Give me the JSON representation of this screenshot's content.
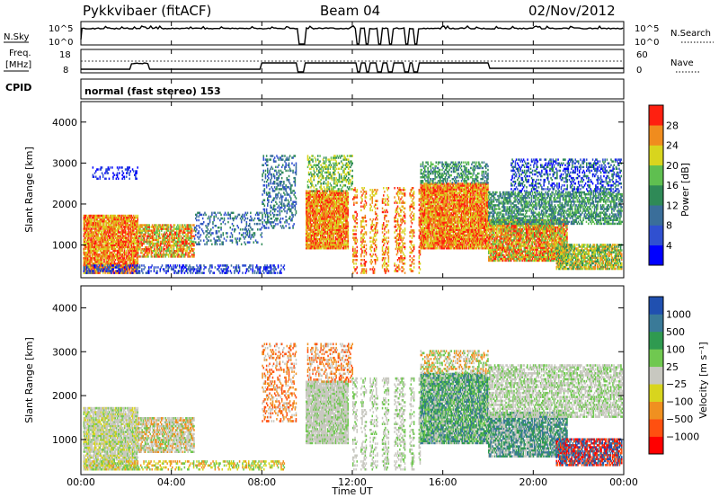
{
  "header": {
    "station": "Pykkvibaer (fitACF)",
    "beam": "Beam 04",
    "date": "02/Nov/2012"
  },
  "strips": {
    "nsky_label": "N.Sky",
    "nsearch_label": "N.Search",
    "freq_label_1": "Freq.",
    "freq_label_2": "[MHz]",
    "nave_label": "Nave",
    "cpid_label": "CPID",
    "cpid_text": "normal (fast stereo) 153",
    "noise_left_ticks": [
      "10^5",
      "10^0"
    ],
    "noise_right_ticks": [
      "10^5",
      "10^0"
    ],
    "freq_left_ticks": [
      "18",
      "8"
    ],
    "nave_right_ticks": [
      "60",
      "0"
    ],
    "line_color": "#000000"
  },
  "chart_data": [
    {
      "type": "heatmap",
      "name": "power",
      "ylabel": "Slant Range [km]",
      "xlabel": "Time UT",
      "x_ticks": [
        "00:00",
        "04:00",
        "08:00",
        "12:00",
        "16:00",
        "20:00",
        "00:00"
      ],
      "xlim_hours": [
        0,
        24
      ],
      "ylim_km": [
        200,
        4500
      ],
      "y_ticks": [
        "1000",
        "2000",
        "3000",
        "4000"
      ],
      "colorbar": {
        "label": "Power [dB]",
        "ticks": [
          "4",
          "8",
          "12",
          "16",
          "20",
          "24",
          "28"
        ],
        "colors": [
          "#0000ff",
          "#3050d0",
          "#3a6e9a",
          "#2f8a57",
          "#5fbf50",
          "#d8d51e",
          "#f08c1e",
          "#ff2010"
        ]
      },
      "scatter_regions": [
        {
          "t0": 0.1,
          "t1": 2.5,
          "r0": 300,
          "r1": 1700,
          "density": 0.85,
          "dominant": [
            5,
            6,
            7
          ]
        },
        {
          "t0": 2.5,
          "t1": 5.0,
          "r0": 700,
          "r1": 1500,
          "density": 0.7,
          "dominant": [
            4,
            5,
            6,
            7
          ]
        },
        {
          "t0": 0.5,
          "t1": 2.5,
          "r0": 2600,
          "r1": 2900,
          "density": 0.25,
          "dominant": [
            0,
            1
          ]
        },
        {
          "t0": 0.1,
          "t1": 9.0,
          "r0": 300,
          "r1": 500,
          "density": 0.35,
          "dominant": [
            0,
            1,
            2
          ]
        },
        {
          "t0": 5.0,
          "t1": 8.0,
          "r0": 1000,
          "r1": 1800,
          "density": 0.25,
          "dominant": [
            1,
            2,
            3
          ]
        },
        {
          "t0": 8.0,
          "t1": 9.5,
          "r0": 1400,
          "r1": 3200,
          "density": 0.3,
          "dominant": [
            1,
            2,
            3
          ]
        },
        {
          "t0": 9.8,
          "t1": 11.8,
          "r0": 900,
          "r1": 2300,
          "density": 0.9,
          "dominant": [
            5,
            6,
            7
          ]
        },
        {
          "t0": 10.0,
          "t1": 12.0,
          "r0": 2300,
          "r1": 3200,
          "density": 0.4,
          "dominant": [
            3,
            4,
            5
          ]
        },
        {
          "t0": 12.0,
          "t1": 15.0,
          "r0": 300,
          "r1": 2400,
          "density": 0.35,
          "dominant": [
            5,
            6,
            7
          ]
        },
        {
          "t0": 15.0,
          "t1": 18.0,
          "r0": 900,
          "r1": 2500,
          "density": 0.9,
          "dominant": [
            5,
            6,
            7
          ]
        },
        {
          "t0": 15.0,
          "t1": 18.0,
          "r0": 2500,
          "r1": 3000,
          "density": 0.45,
          "dominant": [
            2,
            3,
            4
          ]
        },
        {
          "t0": 18.0,
          "t1": 21.5,
          "r0": 600,
          "r1": 1600,
          "density": 0.85,
          "dominant": [
            4,
            5,
            6,
            7
          ]
        },
        {
          "t0": 18.0,
          "t1": 23.9,
          "r0": 1500,
          "r1": 2300,
          "density": 0.6,
          "dominant": [
            2,
            3,
            4
          ]
        },
        {
          "t0": 19.0,
          "t1": 23.9,
          "r0": 2300,
          "r1": 3100,
          "density": 0.35,
          "dominant": [
            0,
            1,
            3
          ]
        },
        {
          "t0": 21.0,
          "t1": 23.9,
          "r0": 400,
          "r1": 1000,
          "density": 0.75,
          "dominant": [
            3,
            4,
            5,
            6
          ]
        }
      ]
    },
    {
      "type": "heatmap",
      "name": "velocity",
      "ylabel": "Slant Range [km]",
      "xlabel": "Time UT",
      "x_ticks": [
        "00:00",
        "04:00",
        "08:00",
        "12:00",
        "16:00",
        "20:00",
        "00:00"
      ],
      "xlim_hours": [
        0,
        24
      ],
      "ylim_km": [
        200,
        4500
      ],
      "y_ticks": [
        "1000",
        "2000",
        "3000",
        "4000"
      ],
      "colorbar": {
        "label": "Velocity [m s⁻¹]",
        "ticks": [
          "1000",
          "500",
          "100",
          "25",
          "−25",
          "−100",
          "−500",
          "−1000"
        ],
        "colors": [
          "#2050b0",
          "#3a7a98",
          "#2f9a50",
          "#70c850",
          "#c8c8c0",
          "#d8d51e",
          "#f09020",
          "#ff5010",
          "#ff0000"
        ]
      },
      "scatter_regions": [
        {
          "t0": 0.1,
          "t1": 2.5,
          "r0": 300,
          "r1": 1700,
          "density": 0.85,
          "dominant": [
            4,
            4,
            4,
            3,
            5
          ]
        },
        {
          "t0": 2.5,
          "t1": 5.0,
          "r0": 700,
          "r1": 1500,
          "density": 0.7,
          "dominant": [
            4,
            4,
            3,
            6
          ]
        },
        {
          "t0": 0.1,
          "t1": 9.0,
          "r0": 300,
          "r1": 500,
          "density": 0.35,
          "dominant": [
            5,
            6,
            3
          ]
        },
        {
          "t0": 8.0,
          "t1": 9.5,
          "r0": 1400,
          "r1": 3200,
          "density": 0.3,
          "dominant": [
            4,
            6,
            7
          ]
        },
        {
          "t0": 9.8,
          "t1": 11.8,
          "r0": 900,
          "r1": 2300,
          "density": 0.9,
          "dominant": [
            4,
            4,
            4,
            3
          ]
        },
        {
          "t0": 10.0,
          "t1": 12.0,
          "r0": 2300,
          "r1": 3200,
          "density": 0.35,
          "dominant": [
            6,
            7,
            4
          ]
        },
        {
          "t0": 12.0,
          "t1": 15.0,
          "r0": 300,
          "r1": 2400,
          "density": 0.35,
          "dominant": [
            4,
            4,
            3
          ]
        },
        {
          "t0": 15.0,
          "t1": 18.0,
          "r0": 900,
          "r1": 2500,
          "density": 0.9,
          "dominant": [
            2,
            3,
            1,
            4
          ]
        },
        {
          "t0": 15.0,
          "t1": 18.0,
          "r0": 2500,
          "r1": 3000,
          "density": 0.45,
          "dominant": [
            6,
            4,
            3
          ]
        },
        {
          "t0": 18.0,
          "t1": 21.5,
          "r0": 600,
          "r1": 1600,
          "density": 0.85,
          "dominant": [
            1,
            2,
            4
          ]
        },
        {
          "t0": 18.0,
          "t1": 23.9,
          "r0": 1500,
          "r1": 2700,
          "density": 0.6,
          "dominant": [
            4,
            4,
            3
          ]
        },
        {
          "t0": 21.0,
          "t1": 23.9,
          "r0": 400,
          "r1": 1000,
          "density": 0.75,
          "dominant": [
            0,
            1,
            8,
            7
          ]
        }
      ]
    }
  ]
}
